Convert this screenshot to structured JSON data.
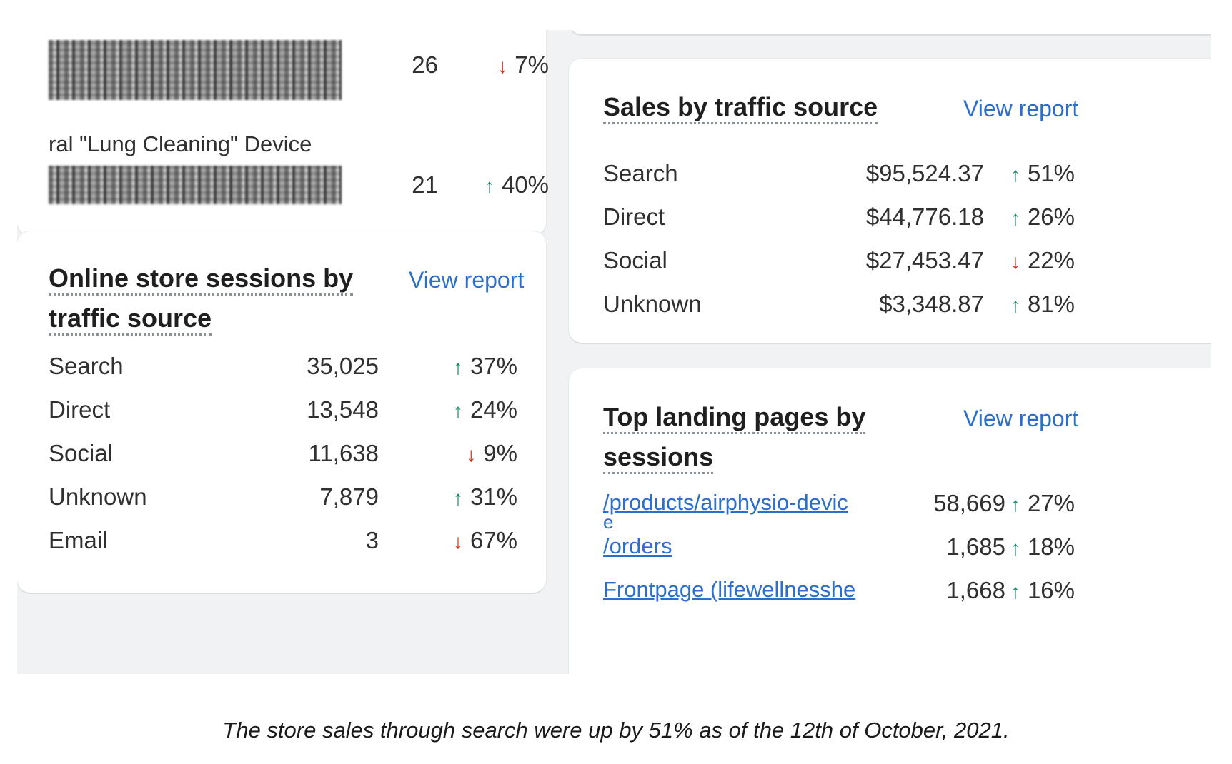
{
  "top_card": {
    "items": [
      {
        "value": "26",
        "dir": "down",
        "change": "7%"
      },
      {
        "value": "21",
        "dir": "up",
        "change": "40%"
      }
    ],
    "partial_label": "ral \"Lung Cleaning\" Device"
  },
  "sessions_card": {
    "title_line1": "Online store sessions by",
    "title_line2": "traffic source",
    "view_report": "View report",
    "rows": [
      {
        "label": "Search",
        "value": "35,025",
        "dir": "up",
        "change": "37%"
      },
      {
        "label": "Direct",
        "value": "13,548",
        "dir": "up",
        "change": "24%"
      },
      {
        "label": "Social",
        "value": "11,638",
        "dir": "down",
        "change": "9%"
      },
      {
        "label": "Unknown",
        "value": "7,879",
        "dir": "up",
        "change": "31%"
      },
      {
        "label": "Email",
        "value": "3",
        "dir": "down",
        "change": "67%"
      }
    ]
  },
  "sales_card": {
    "title": "Sales by traffic source",
    "view_report": "View report",
    "rows": [
      {
        "label": "Search",
        "value": "$95,524.37",
        "dir": "up",
        "change": "51%"
      },
      {
        "label": "Direct",
        "value": "$44,776.18",
        "dir": "up",
        "change": "26%"
      },
      {
        "label": "Social",
        "value": "$27,453.47",
        "dir": "down",
        "change": "22%"
      },
      {
        "label": "Unknown",
        "value": "$3,348.87",
        "dir": "up",
        "change": "81%"
      }
    ]
  },
  "landing_card": {
    "title_line1": "Top landing pages by",
    "title_line2": "sessions",
    "view_report": "View report",
    "rows": [
      {
        "label_line1": "/products/airphysio-devic",
        "label_line2": "e",
        "value": "58,669",
        "dir": "up",
        "change": "27%"
      },
      {
        "label_line1": "/orders",
        "value": "1,685",
        "dir": "up",
        "change": "18%"
      },
      {
        "label_line1": "Frontpage (lifewellnesshe",
        "value": "1,668",
        "dir": "up",
        "change": "16%"
      }
    ]
  },
  "icons": {
    "up": "↑",
    "down": "↓"
  },
  "colors": {
    "up": "#0d8a5c",
    "down": "#d82c0d",
    "link": "#2c6ecb"
  },
  "caption": "The store sales through search were up by 51% as of the 12th of October, 2021."
}
